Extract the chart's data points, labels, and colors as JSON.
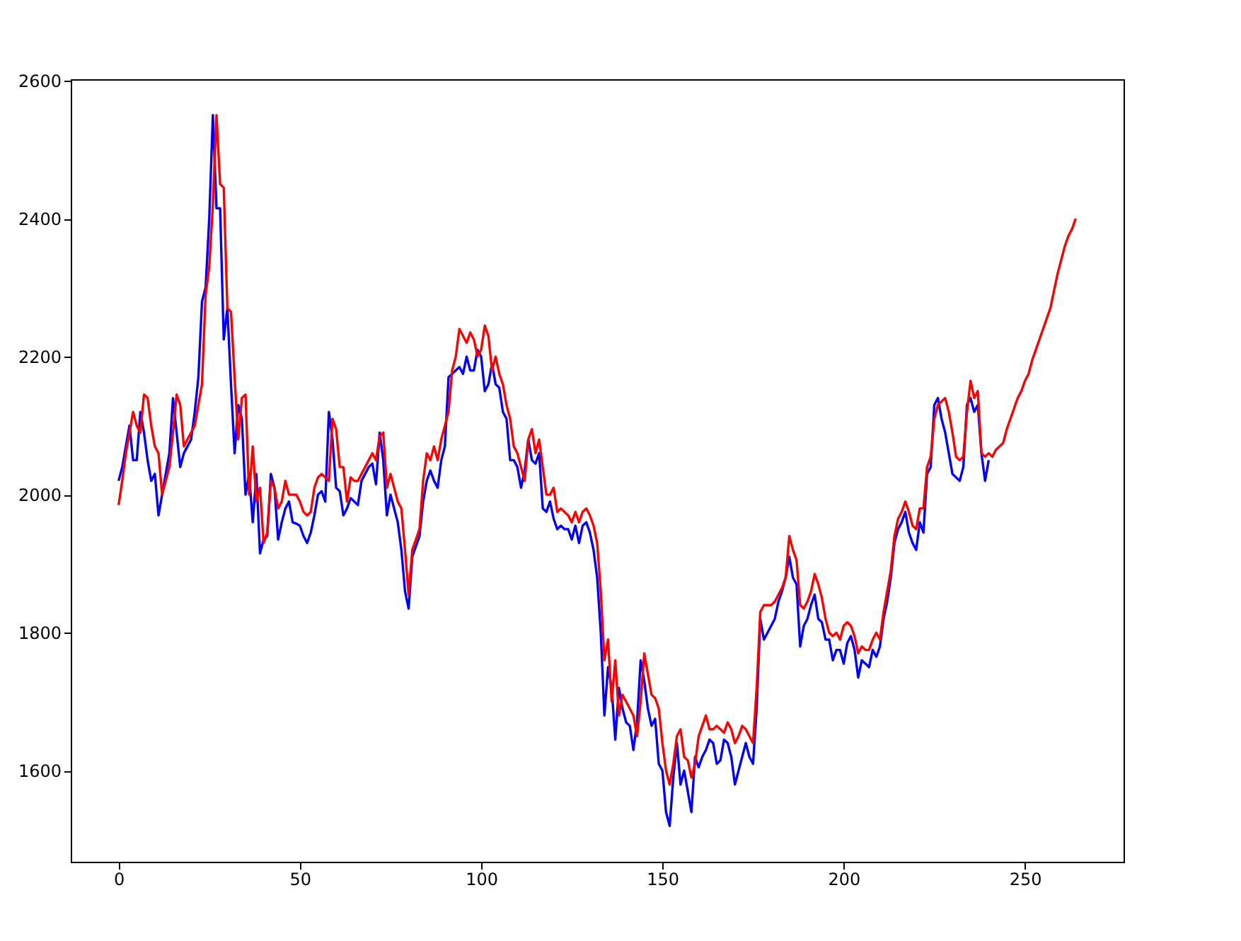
{
  "chart_data": {
    "type": "line",
    "xlim": [
      -13.2,
      277.2
    ],
    "ylim": [
      1468,
      2602
    ],
    "xticks": [
      0,
      50,
      100,
      150,
      200,
      250
    ],
    "yticks": [
      1600,
      1800,
      2000,
      2200,
      2400,
      2600
    ],
    "grid": false,
    "line_style": "solid",
    "marker": "none",
    "series": [
      {
        "color": "#0000ff",
        "x": [
          0,
          1,
          2,
          3,
          4,
          5,
          6,
          7,
          8,
          9,
          10,
          11,
          12,
          13,
          14,
          15,
          16,
          17,
          18,
          19,
          20,
          21,
          22,
          23,
          24,
          25,
          26,
          27,
          28,
          29,
          30,
          31,
          32,
          33,
          34,
          35,
          36,
          37,
          38,
          39,
          40,
          41,
          42,
          43,
          44,
          45,
          46,
          47,
          48,
          49,
          50,
          51,
          52,
          53,
          54,
          55,
          56,
          57,
          58,
          59,
          60,
          61,
          62,
          63,
          64,
          65,
          66,
          67,
          68,
          69,
          70,
          71,
          72,
          73,
          74,
          75,
          76,
          77,
          78,
          79,
          80,
          81,
          82,
          83,
          84,
          85,
          86,
          87,
          88,
          89,
          90,
          91,
          92,
          93,
          94,
          95,
          96,
          97,
          98,
          99,
          100,
          101,
          102,
          103,
          104,
          105,
          106,
          107,
          108,
          109,
          110,
          111,
          112,
          113,
          114,
          115,
          116,
          117,
          118,
          119,
          120,
          121,
          122,
          123,
          124,
          125,
          126,
          127,
          128,
          129,
          130,
          131,
          132,
          133,
          134,
          135,
          136,
          137,
          138,
          139,
          140,
          141,
          142,
          143,
          144,
          145,
          146,
          147,
          148,
          149,
          150,
          151,
          152,
          153,
          154,
          155,
          156,
          157,
          158,
          159,
          160,
          161,
          162,
          163,
          164,
          165,
          166,
          167,
          168,
          169,
          170,
          171,
          172,
          173,
          174,
          175,
          176,
          177,
          178,
          179,
          180,
          181,
          182,
          183,
          184,
          185,
          186,
          187,
          188,
          189,
          190,
          191,
          192,
          193,
          194,
          195,
          196,
          197,
          198,
          199,
          200,
          201,
          202,
          203,
          204,
          205,
          206,
          207,
          208,
          209,
          210,
          211,
          212,
          213,
          214,
          215,
          216,
          217,
          218,
          219,
          220,
          221,
          222,
          223,
          224,
          225,
          226,
          227,
          228,
          229,
          230,
          231,
          232,
          233,
          234,
          235,
          236,
          237,
          238,
          239,
          240
        ],
        "values": [
          2020,
          2040,
          2070,
          2100,
          2050,
          2050,
          2120,
          2090,
          2050,
          2020,
          2030,
          1970,
          2000,
          2030,
          2060,
          2140,
          2090,
          2040,
          2060,
          2070,
          2080,
          2120,
          2170,
          2280,
          2300,
          2400,
          2550,
          2415,
          2415,
          2225,
          2270,
          2160,
          2060,
          2130,
          2110,
          2000,
          2030,
          1960,
          2030,
          1915,
          1935,
          1940,
          2030,
          2010,
          1935,
          1960,
          1980,
          1990,
          1960,
          1958,
          1955,
          1940,
          1930,
          1945,
          1970,
          2000,
          2005,
          1990,
          2120,
          2080,
          2010,
          2005,
          1970,
          1980,
          1995,
          1990,
          1985,
          2020,
          2030,
          2040,
          2045,
          2015,
          2090,
          2050,
          1970,
          2000,
          1980,
          1960,
          1920,
          1860,
          1835,
          1910,
          1925,
          1940,
          1990,
          2020,
          2035,
          2020,
          2010,
          2050,
          2070,
          2170,
          2175,
          2180,
          2185,
          2175,
          2200,
          2180,
          2180,
          2210,
          2200,
          2150,
          2160,
          2190,
          2160,
          2155,
          2120,
          2110,
          2050,
          2050,
          2040,
          2010,
          2035,
          2080,
          2050,
          2045,
          2060,
          1980,
          1975,
          1990,
          1965,
          1950,
          1955,
          1950,
          1950,
          1935,
          1955,
          1930,
          1955,
          1960,
          1945,
          1920,
          1880,
          1800,
          1680,
          1750,
          1720,
          1645,
          1720,
          1690,
          1670,
          1665,
          1630,
          1670,
          1760,
          1730,
          1690,
          1665,
          1675,
          1610,
          1600,
          1540,
          1520,
          1590,
          1640,
          1580,
          1600,
          1570,
          1540,
          1620,
          1605,
          1620,
          1630,
          1645,
          1640,
          1610,
          1615,
          1645,
          1640,
          1620,
          1580,
          1600,
          1620,
          1640,
          1620,
          1610,
          1690,
          1820,
          1790,
          1800,
          1810,
          1820,
          1845,
          1860,
          1880,
          1910,
          1880,
          1870,
          1780,
          1810,
          1820,
          1840,
          1855,
          1820,
          1815,
          1790,
          1790,
          1760,
          1775,
          1775,
          1755,
          1785,
          1795,
          1775,
          1735,
          1760,
          1755,
          1750,
          1775,
          1765,
          1780,
          1820,
          1845,
          1880,
          1930,
          1950,
          1960,
          1975,
          1945,
          1930,
          1920,
          1960,
          1945,
          2030,
          2040,
          2130,
          2140,
          2110,
          2090,
          2060,
          2030,
          2025,
          2020,
          2040,
          2130,
          2140,
          2120,
          2130,
          2060,
          2020,
          2050
        ]
      },
      {
        "color": "#ff0000",
        "x": [
          0,
          1,
          2,
          3,
          4,
          5,
          6,
          7,
          8,
          9,
          10,
          11,
          12,
          13,
          14,
          15,
          16,
          17,
          18,
          19,
          20,
          21,
          22,
          23,
          24,
          25,
          26,
          27,
          28,
          29,
          30,
          31,
          32,
          33,
          34,
          35,
          36,
          37,
          38,
          39,
          40,
          41,
          42,
          43,
          44,
          45,
          46,
          47,
          48,
          49,
          50,
          51,
          52,
          53,
          54,
          55,
          56,
          57,
          58,
          59,
          60,
          61,
          62,
          63,
          64,
          65,
          66,
          67,
          68,
          69,
          70,
          71,
          72,
          73,
          74,
          75,
          76,
          77,
          78,
          79,
          80,
          81,
          82,
          83,
          84,
          85,
          86,
          87,
          88,
          89,
          90,
          91,
          92,
          93,
          94,
          95,
          96,
          97,
          98,
          99,
          100,
          101,
          102,
          103,
          104,
          105,
          106,
          107,
          108,
          109,
          110,
          111,
          112,
          113,
          114,
          115,
          116,
          117,
          118,
          119,
          120,
          121,
          122,
          123,
          124,
          125,
          126,
          127,
          128,
          129,
          130,
          131,
          132,
          133,
          134,
          135,
          136,
          137,
          138,
          139,
          140,
          141,
          142,
          143,
          144,
          145,
          146,
          147,
          148,
          149,
          150,
          151,
          152,
          153,
          154,
          155,
          156,
          157,
          158,
          159,
          160,
          161,
          162,
          163,
          164,
          165,
          166,
          167,
          168,
          169,
          170,
          171,
          172,
          173,
          174,
          175,
          176,
          177,
          178,
          179,
          180,
          181,
          182,
          183,
          184,
          185,
          186,
          187,
          188,
          189,
          190,
          191,
          192,
          193,
          194,
          195,
          196,
          197,
          198,
          199,
          200,
          201,
          202,
          203,
          204,
          205,
          206,
          207,
          208,
          209,
          210,
          211,
          212,
          213,
          214,
          215,
          216,
          217,
          218,
          219,
          220,
          221,
          222,
          223,
          224,
          225,
          226,
          227,
          228,
          229,
          230,
          231,
          232,
          233,
          234,
          235,
          236,
          237,
          238,
          239,
          240,
          241,
          242,
          243,
          244,
          245,
          246,
          247,
          248,
          249,
          250,
          251,
          252,
          253,
          254,
          255,
          256,
          257,
          258,
          259,
          260,
          261,
          262,
          263,
          264
        ],
        "values": [
          1985,
          2020,
          2060,
          2090,
          2120,
          2100,
          2090,
          2145,
          2140,
          2100,
          2070,
          2060,
          2000,
          2020,
          2040,
          2090,
          2145,
          2130,
          2070,
          2080,
          2090,
          2100,
          2130,
          2160,
          2290,
          2330,
          2420,
          2550,
          2450,
          2445,
          2270,
          2265,
          2170,
          2080,
          2140,
          2145,
          2000,
          2070,
          1990,
          2010,
          1930,
          1945,
          2020,
          2010,
          1980,
          1990,
          2020,
          2000,
          2000,
          2000,
          1990,
          1975,
          1970,
          1975,
          2010,
          2025,
          2030,
          2025,
          2020,
          2110,
          2095,
          2040,
          2040,
          1990,
          2025,
          2020,
          2020,
          2030,
          2040,
          2050,
          2060,
          2050,
          2085,
          2090,
          2010,
          2030,
          2010,
          1990,
          1980,
          1920,
          1855,
          1920,
          1935,
          1950,
          2020,
          2060,
          2050,
          2070,
          2050,
          2080,
          2100,
          2120,
          2180,
          2200,
          2240,
          2230,
          2220,
          2235,
          2225,
          2200,
          2210,
          2245,
          2230,
          2180,
          2200,
          2175,
          2160,
          2130,
          2110,
          2070,
          2060,
          2040,
          2020,
          2080,
          2095,
          2060,
          2080,
          2040,
          2000,
          2000,
          2010,
          1975,
          1980,
          1975,
          1970,
          1960,
          1975,
          1960,
          1975,
          1980,
          1970,
          1955,
          1930,
          1860,
          1760,
          1790,
          1700,
          1760,
          1680,
          1710,
          1700,
          1690,
          1680,
          1650,
          1700,
          1770,
          1740,
          1710,
          1705,
          1690,
          1640,
          1600,
          1580,
          1610,
          1650,
          1660,
          1620,
          1615,
          1590,
          1610,
          1650,
          1665,
          1680,
          1660,
          1660,
          1665,
          1660,
          1655,
          1670,
          1660,
          1640,
          1650,
          1665,
          1660,
          1650,
          1640,
          1720,
          1830,
          1840,
          1840,
          1840,
          1845,
          1855,
          1865,
          1880,
          1940,
          1920,
          1905,
          1840,
          1835,
          1845,
          1860,
          1885,
          1870,
          1850,
          1820,
          1800,
          1795,
          1800,
          1790,
          1810,
          1815,
          1810,
          1795,
          1770,
          1780,
          1775,
          1775,
          1790,
          1800,
          1790,
          1830,
          1860,
          1890,
          1940,
          1965,
          1975,
          1990,
          1975,
          1955,
          1950,
          1980,
          1980,
          2040,
          2055,
          2110,
          2130,
          2135,
          2140,
          2120,
          2090,
          2055,
          2050,
          2055,
          2120,
          2165,
          2140,
          2150,
          2060,
          2055,
          2060,
          2055,
          2065,
          2070,
          2075,
          2095,
          2110,
          2125,
          2140,
          2150,
          2165,
          2175,
          2195,
          2210,
          2225,
          2240,
          2255,
          2270,
          2295,
          2320,
          2340,
          2360,
          2375,
          2385,
          2400
        ]
      }
    ]
  }
}
